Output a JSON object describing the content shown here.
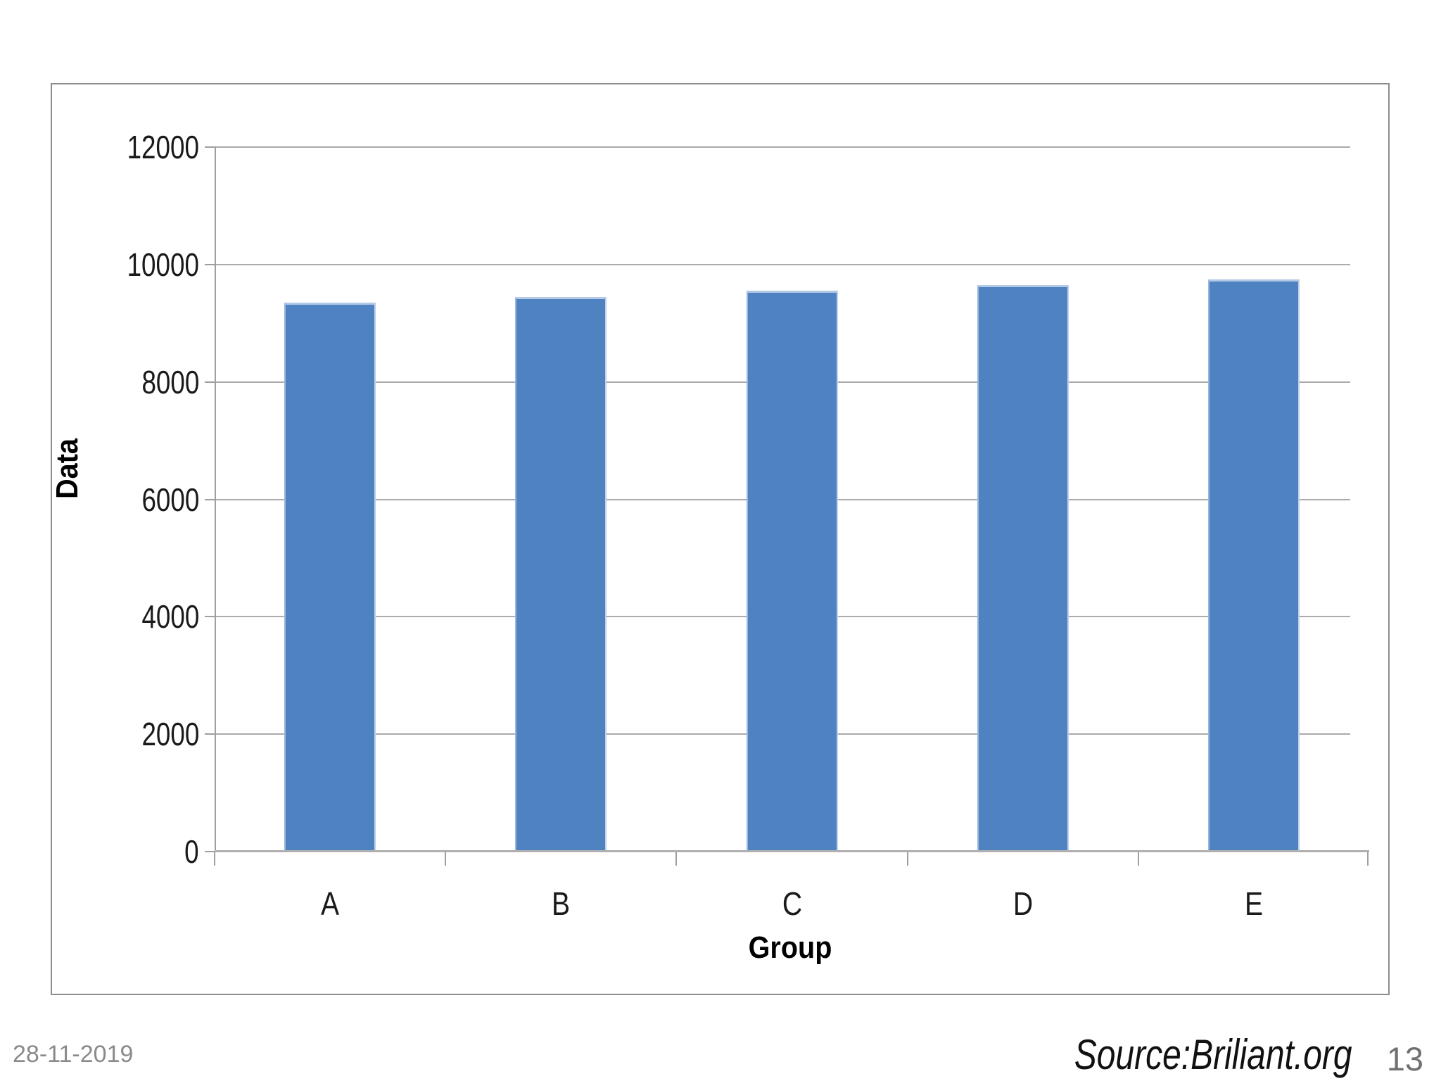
{
  "chart_data": {
    "type": "bar",
    "title": "",
    "categories": [
      "A",
      "B",
      "C",
      "D",
      "E"
    ],
    "values": [
      9350,
      9450,
      9550,
      9650,
      9750
    ],
    "xlabel": "Group",
    "ylabel": "Data",
    "ylim": [
      0,
      12000
    ],
    "yticks": [
      0,
      2000,
      4000,
      6000,
      8000,
      10000,
      12000
    ],
    "grid": true,
    "legend": "none",
    "bar_color": "#4f82c1",
    "gridline_color": "#ababab",
    "axis_color": "#9e9e9e"
  },
  "footer": {
    "date": "28-11-2019",
    "source": "Source:Briliant.org",
    "page_number": "13"
  }
}
